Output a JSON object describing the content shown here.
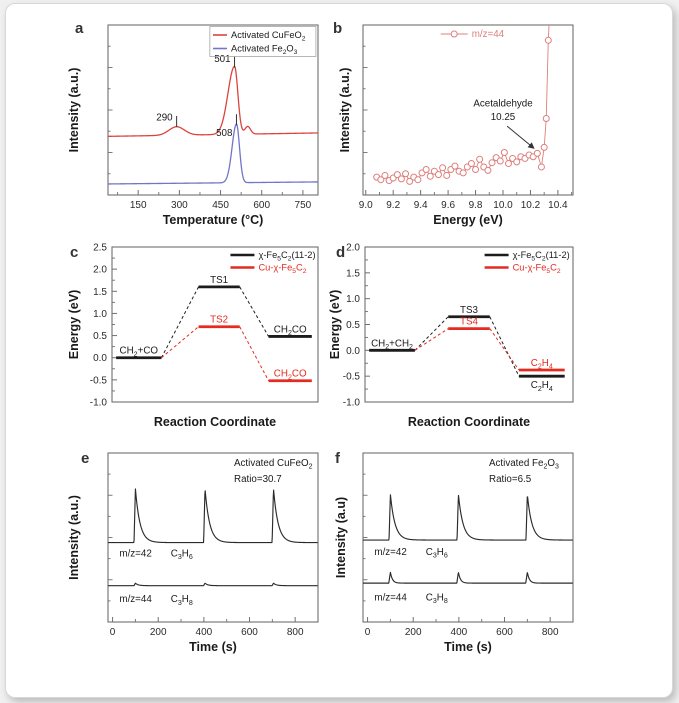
{
  "page": {
    "background": "#f0f0f0",
    "card_background": "#ffffff",
    "card_border": "#d8d8d8"
  },
  "figure": {
    "frame_color": "#6f6f6f",
    "text_color": "#1a1a1a",
    "tick_label_color": "#2a2a2a"
  },
  "chart_data": [
    {
      "panel": "a",
      "type": "line",
      "xlabel": "Temperature (°C)",
      "ylabel": "Intensity (a.u.)",
      "xlim": [
        40,
        805
      ],
      "xticks": [
        150,
        300,
        450,
        600,
        750
      ],
      "xminor": 75,
      "legend": {
        "frame": true,
        "items": [
          {
            "label": "Activated CuFeO_2_",
            "color": "#d9453e"
          },
          {
            "label": "Activated Fe_2_O_3_",
            "color": "#7176c8"
          }
        ]
      },
      "series": [
        {
          "name": "Activated CuFeO_2_",
          "color": "#d9453e",
          "baseline": 0.345,
          "drift": 0.02,
          "peaks": [
            {
              "center": 290,
              "height": 0.05,
              "sigma": 28
            },
            {
              "center": 501,
              "height": 0.4,
              "sigma_left": 24,
              "sigma_right": 12
            },
            {
              "center": 549,
              "height": 0.045,
              "sigma": 10
            }
          ]
        },
        {
          "name": "Activated Fe_2_O_3_",
          "color": "#7176c8",
          "baseline": 0.065,
          "drift": 0.012,
          "peaks": [
            {
              "center": 508,
              "height": 0.345,
              "sigma_left": 16,
              "sigma_right": 11
            }
          ]
        }
      ],
      "peak_labels": [
        {
          "text": "290",
          "x": 290,
          "text_y": 0.455,
          "tick_y": [
            0.4,
            0.465
          ]
        },
        {
          "text": "501",
          "x": 501,
          "text_y": 0.8,
          "tick_y": [
            0.75,
            0.815
          ]
        },
        {
          "text": "508",
          "x": 508,
          "text_y": 0.365,
          "tick_y": [
            0.41,
            0.475
          ]
        }
      ]
    },
    {
      "panel": "b",
      "type": "scatter",
      "xlabel": "Energy (eV)",
      "ylabel": "Intensity (a.u.)",
      "xlim": [
        8.98,
        10.51
      ],
      "xticks": [
        9.0,
        9.2,
        9.4,
        9.6,
        9.8,
        10.0,
        10.2,
        10.4
      ],
      "xtick_labels": [
        "9.0",
        "9.2",
        "9.4",
        "9.6",
        "9.8",
        "10.0",
        "10.2",
        "10.4"
      ],
      "xminor": 0.1,
      "legend": {
        "frame": false,
        "items": [
          {
            "label": "m/z=44",
            "color": "#dd7f7c",
            "sample": "line-circle"
          }
        ]
      },
      "series": [
        {
          "name": "m/z=44",
          "color": "#dd7f7c",
          "marker": "open-circle",
          "points": [
            [
              9.08,
              0.105
            ],
            [
              9.11,
              0.09
            ],
            [
              9.14,
              0.115
            ],
            [
              9.17,
              0.085
            ],
            [
              9.2,
              0.1
            ],
            [
              9.23,
              0.12
            ],
            [
              9.26,
              0.095
            ],
            [
              9.29,
              0.125
            ],
            [
              9.32,
              0.08
            ],
            [
              9.35,
              0.105
            ],
            [
              9.38,
              0.09
            ],
            [
              9.41,
              0.13
            ],
            [
              9.44,
              0.15
            ],
            [
              9.47,
              0.11
            ],
            [
              9.5,
              0.14
            ],
            [
              9.53,
              0.12
            ],
            [
              9.56,
              0.16
            ],
            [
              9.59,
              0.115
            ],
            [
              9.62,
              0.15
            ],
            [
              9.65,
              0.17
            ],
            [
              9.68,
              0.14
            ],
            [
              9.71,
              0.13
            ],
            [
              9.74,
              0.165
            ],
            [
              9.77,
              0.185
            ],
            [
              9.8,
              0.15
            ],
            [
              9.83,
              0.21
            ],
            [
              9.86,
              0.165
            ],
            [
              9.89,
              0.145
            ],
            [
              9.92,
              0.19
            ],
            [
              9.95,
              0.22
            ],
            [
              9.98,
              0.2
            ],
            [
              10.01,
              0.25
            ],
            [
              10.04,
              0.185
            ],
            [
              10.07,
              0.215
            ],
            [
              10.1,
              0.195
            ],
            [
              10.13,
              0.225
            ],
            [
              10.16,
              0.215
            ],
            [
              10.19,
              0.235
            ],
            [
              10.22,
              0.225
            ],
            [
              10.25,
              0.245
            ],
            [
              10.28,
              0.165
            ],
            [
              10.3,
              0.28
            ],
            [
              10.315,
              0.45
            ],
            [
              10.33,
              0.91
            ],
            [
              10.345,
              1.15
            ]
          ]
        }
      ],
      "annotations": [
        {
          "text": "Acetaldehyde",
          "x": 10.0,
          "y": 0.52
        },
        {
          "text": "10.25",
          "x": 10.0,
          "y": 0.44
        }
      ],
      "arrow": {
        "from": [
          10.03,
          0.405
        ],
        "to": [
          10.225,
          0.275
        ]
      }
    },
    {
      "panel": "c",
      "type": "levels",
      "xlabel": "Reaction Coordinate",
      "ylabel": "Energy (eV)",
      "ylim": [
        -1.0,
        2.5
      ],
      "yticks": [
        2.5,
        2.0,
        1.5,
        1.0,
        0.5,
        0.0,
        -0.5,
        -1.0
      ],
      "ytick_labels": [
        "2.5",
        "2.0",
        "1.5",
        "1.0",
        "0.5",
        "0.0",
        "-0.5",
        "-1.0"
      ],
      "yminor": 0.25,
      "legend": {
        "frame": false,
        "items": [
          {
            "label": "χ-Fe_5_C_2_(11-2)",
            "color": "#1c1c1c"
          },
          {
            "label": "Cu-χ-Fe_5_C_2_",
            "color": "#e42b22"
          }
        ]
      },
      "series": [
        {
          "name": "χ-Fe_5_C_2_(11-2)",
          "color": "#1c1c1c",
          "levels": [
            {
              "label": "CH_2_+CO",
              "energy": 0.0,
              "x": [
                0.02,
                0.24
              ],
              "label_pos": "above"
            },
            {
              "label": "TS1",
              "energy": 1.6,
              "x": [
                0.42,
                0.62
              ],
              "label_pos": "above"
            },
            {
              "label": "CH_2_CO",
              "energy": 0.48,
              "x": [
                0.76,
                0.97
              ],
              "label_pos": "above"
            }
          ]
        },
        {
          "name": "Cu-χ-Fe_5_C_2_",
          "color": "#e42b22",
          "levels": [
            {
              "label": "",
              "energy": 0.0,
              "x": [
                0.02,
                0.24
              ],
              "hidden": true
            },
            {
              "label": "TS2",
              "energy": 0.7,
              "x": [
                0.42,
                0.62
              ],
              "label_pos": "above"
            },
            {
              "label": "CH_2_CO",
              "energy": -0.52,
              "x": [
                0.76,
                0.97
              ],
              "label_pos": "above"
            }
          ]
        }
      ]
    },
    {
      "panel": "d",
      "type": "levels",
      "xlabel": "Reaction Coordinate",
      "ylabel": "Energy (eV)",
      "ylim": [
        -1.0,
        2.0
      ],
      "yticks": [
        2.0,
        1.5,
        1.0,
        0.5,
        0.0,
        -0.5,
        -1.0
      ],
      "ytick_labels": [
        "2.0",
        "1.5",
        "1.0",
        "0.5",
        "0.0",
        "-0.5",
        "-1.0"
      ],
      "yminor": 0.25,
      "legend": {
        "frame": false,
        "items": [
          {
            "label": "χ-Fe_5_C_2_(11-2)",
            "color": "#1c1c1c"
          },
          {
            "label": "Cu-χ-Fe_5_C_2_",
            "color": "#e42b22"
          }
        ]
      },
      "series": [
        {
          "name": "χ-Fe_5_C_2_(11-2)",
          "color": "#1c1c1c",
          "levels": [
            {
              "label": "CH_2_+CH_2_",
              "energy": 0.0,
              "x": [
                0.02,
                0.24
              ],
              "label_pos": "above"
            },
            {
              "label": "TS3",
              "energy": 0.65,
              "x": [
                0.4,
                0.6
              ],
              "label_pos": "above"
            },
            {
              "label": "C_2_H_4_",
              "energy": -0.5,
              "x": [
                0.74,
                0.96
              ],
              "label_pos": "below"
            }
          ]
        },
        {
          "name": "Cu-χ-Fe_5_C_2_",
          "color": "#e42b22",
          "levels": [
            {
              "label": "",
              "energy": 0.0,
              "x": [
                0.02,
                0.24
              ],
              "hidden": true
            },
            {
              "label": "TS4",
              "energy": 0.42,
              "x": [
                0.4,
                0.6
              ],
              "label_pos": "above"
            },
            {
              "label": "C_2_H_4_",
              "energy": -0.38,
              "x": [
                0.74,
                0.96
              ],
              "label_pos": "above"
            }
          ]
        }
      ]
    },
    {
      "panel": "e",
      "type": "pulses",
      "xlabel": "Time (s)",
      "ylabel": "Intensity (a.u.)",
      "xlim": [
        -20,
        900
      ],
      "xticks": [
        0,
        200,
        400,
        600,
        800
      ],
      "xminor": 100,
      "corner_text": [
        "Activated CuFeO_2_",
        "Ratio=30.7"
      ],
      "series": [
        {
          "name": "m/z=42",
          "color": "#2b2b2b",
          "baseline": 0.47,
          "peak_height": 0.32,
          "peak_times": [
            100,
            405,
            705
          ],
          "rise": 6,
          "decay": 20
        },
        {
          "name": "m/z=44",
          "color": "#2b2b2b",
          "baseline": 0.215,
          "peak_height": 0.015,
          "peak_times": [
            100,
            405,
            705
          ],
          "rise": 6,
          "decay": 12
        }
      ],
      "trace_labels": [
        {
          "mz": "m/z=42",
          "formula": "C_3_H_6_",
          "x_mz": 30,
          "x_formula": 255,
          "y": 0.405
        },
        {
          "mz": "m/z=44",
          "formula": "C_3_H_8_",
          "x_mz": 30,
          "x_formula": 255,
          "y": 0.135
        }
      ]
    },
    {
      "panel": "f",
      "type": "pulses",
      "xlabel": "Time (s)",
      "ylabel": "Intensity (a.u)",
      "xlim": [
        -20,
        900
      ],
      "xticks": [
        0,
        200,
        400,
        600,
        800
      ],
      "xminor": 100,
      "corner_text": [
        "Activated Fe_2_O_3_",
        "Ratio=6.5"
      ],
      "series": [
        {
          "name": "m/z=42",
          "color": "#2b2b2b",
          "baseline": 0.485,
          "peak_height": 0.27,
          "peak_times": [
            100,
            398,
            700
          ],
          "rise": 6,
          "decay": 20
        },
        {
          "name": "m/z=44",
          "color": "#2b2b2b",
          "baseline": 0.23,
          "peak_height": 0.065,
          "peak_times": [
            100,
            398,
            700
          ],
          "rise": 7,
          "decay": 9
        }
      ],
      "trace_labels": [
        {
          "mz": "m/z=42",
          "formula": "C_3_H_6_",
          "x_mz": 30,
          "x_formula": 255,
          "y": 0.415
        },
        {
          "mz": "m/z=44",
          "formula": "C_3_H_8_",
          "x_mz": 30,
          "x_formula": 255,
          "y": 0.145
        }
      ]
    }
  ]
}
